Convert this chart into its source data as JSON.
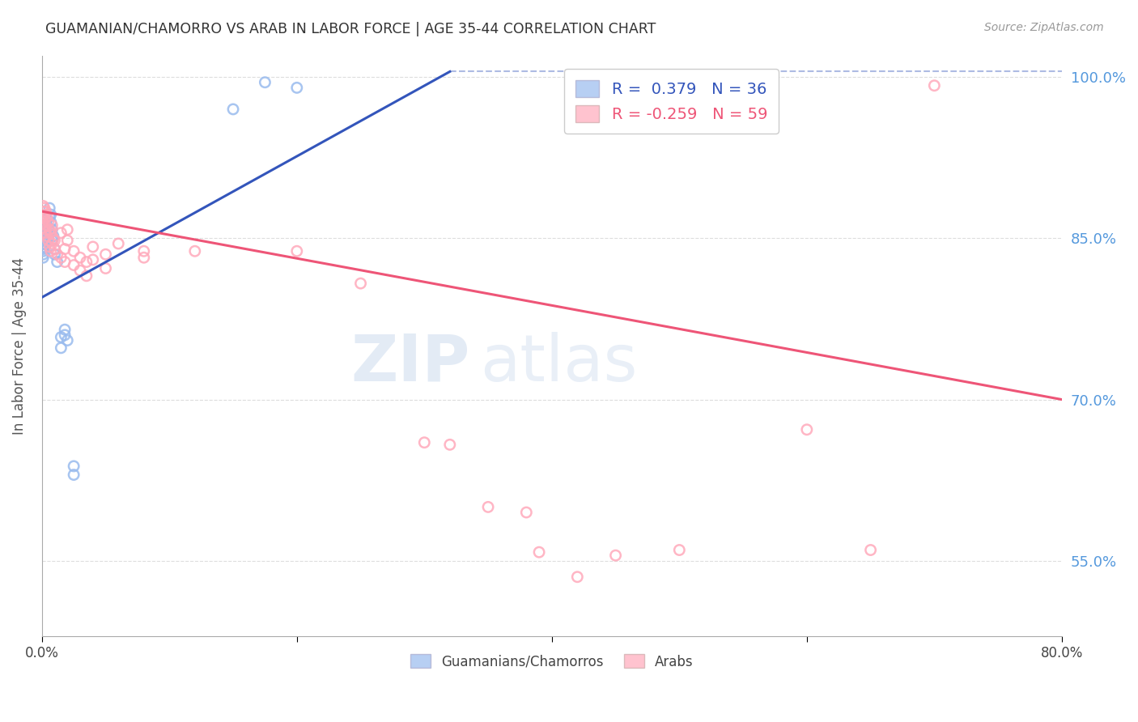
{
  "title": "GUAMANIAN/CHAMORRO VS ARAB IN LABOR FORCE | AGE 35-44 CORRELATION CHART",
  "source": "Source: ZipAtlas.com",
  "ylabel": "In Labor Force | Age 35-44",
  "legend_label1": "Guamanians/Chamorros",
  "legend_label2": "Arabs",
  "R1": 0.379,
  "N1": 36,
  "R2": -0.259,
  "N2": 59,
  "blue_color": "#99BBEE",
  "pink_color": "#FFAABB",
  "blue_line_color": "#3355BB",
  "pink_line_color": "#EE5577",
  "blue_scatter": [
    [
      0.001,
      0.84
    ],
    [
      0.001,
      0.835
    ],
    [
      0.001,
      0.832
    ],
    [
      0.001,
      0.842
    ],
    [
      0.001,
      0.838
    ],
    [
      0.002,
      0.855
    ],
    [
      0.002,
      0.848
    ],
    [
      0.002,
      0.852
    ],
    [
      0.002,
      0.845
    ],
    [
      0.003,
      0.858
    ],
    [
      0.003,
      0.862
    ],
    [
      0.003,
      0.85
    ],
    [
      0.004,
      0.868
    ],
    [
      0.004,
      0.855
    ],
    [
      0.005,
      0.86
    ],
    [
      0.005,
      0.85
    ],
    [
      0.006,
      0.878
    ],
    [
      0.006,
      0.87
    ],
    [
      0.007,
      0.872
    ],
    [
      0.007,
      0.865
    ],
    [
      0.008,
      0.858
    ],
    [
      0.008,
      0.848
    ],
    [
      0.009,
      0.852
    ],
    [
      0.01,
      0.84
    ],
    [
      0.01,
      0.835
    ],
    [
      0.012,
      0.828
    ],
    [
      0.015,
      0.758
    ],
    [
      0.015,
      0.748
    ],
    [
      0.018,
      0.76
    ],
    [
      0.018,
      0.765
    ],
    [
      0.02,
      0.755
    ],
    [
      0.025,
      0.638
    ],
    [
      0.025,
      0.63
    ],
    [
      0.15,
      0.97
    ],
    [
      0.175,
      0.995
    ],
    [
      0.2,
      0.99
    ]
  ],
  "pink_scatter": [
    [
      0.001,
      0.87
    ],
    [
      0.001,
      0.865
    ],
    [
      0.001,
      0.875
    ],
    [
      0.001,
      0.88
    ],
    [
      0.002,
      0.878
    ],
    [
      0.002,
      0.86
    ],
    [
      0.002,
      0.868
    ],
    [
      0.002,
      0.872
    ],
    [
      0.003,
      0.862
    ],
    [
      0.003,
      0.855
    ],
    [
      0.003,
      0.875
    ],
    [
      0.003,
      0.858
    ],
    [
      0.004,
      0.87
    ],
    [
      0.004,
      0.852
    ],
    [
      0.005,
      0.865
    ],
    [
      0.005,
      0.848
    ],
    [
      0.006,
      0.858
    ],
    [
      0.006,
      0.842
    ],
    [
      0.007,
      0.855
    ],
    [
      0.007,
      0.838
    ],
    [
      0.008,
      0.862
    ],
    [
      0.008,
      0.845
    ],
    [
      0.009,
      0.85
    ],
    [
      0.01,
      0.848
    ],
    [
      0.01,
      0.84
    ],
    [
      0.012,
      0.835
    ],
    [
      0.015,
      0.855
    ],
    [
      0.015,
      0.832
    ],
    [
      0.018,
      0.84
    ],
    [
      0.018,
      0.828
    ],
    [
      0.02,
      0.858
    ],
    [
      0.02,
      0.848
    ],
    [
      0.025,
      0.838
    ],
    [
      0.025,
      0.825
    ],
    [
      0.03,
      0.832
    ],
    [
      0.03,
      0.82
    ],
    [
      0.035,
      0.828
    ],
    [
      0.035,
      0.815
    ],
    [
      0.04,
      0.842
    ],
    [
      0.04,
      0.83
    ],
    [
      0.05,
      0.835
    ],
    [
      0.05,
      0.822
    ],
    [
      0.06,
      0.845
    ],
    [
      0.08,
      0.838
    ],
    [
      0.08,
      0.832
    ],
    [
      0.12,
      0.838
    ],
    [
      0.2,
      0.838
    ],
    [
      0.25,
      0.808
    ],
    [
      0.3,
      0.66
    ],
    [
      0.32,
      0.658
    ],
    [
      0.35,
      0.6
    ],
    [
      0.38,
      0.595
    ],
    [
      0.39,
      0.558
    ],
    [
      0.42,
      0.535
    ],
    [
      0.45,
      0.555
    ],
    [
      0.5,
      0.56
    ],
    [
      0.6,
      0.672
    ],
    [
      0.65,
      0.56
    ],
    [
      0.7,
      0.992
    ]
  ],
  "xlim": [
    0.0,
    0.8
  ],
  "ylim": [
    0.48,
    1.02
  ],
  "yticks": [
    0.55,
    0.7,
    0.85,
    1.0
  ],
  "ytick_labels": [
    "55.0%",
    "70.0%",
    "85.0%",
    "100.0%"
  ],
  "xtick_positions": [
    0.0,
    0.2,
    0.4,
    0.6,
    0.8
  ],
  "xtick_labels": [
    "0.0%",
    "",
    "",
    "",
    "80.0%"
  ],
  "bg_color": "#FFFFFF",
  "grid_color": "#DDDDDD",
  "title_color": "#333333",
  "axis_label_color": "#555555",
  "right_axis_color": "#5599DD",
  "watermark_zip": "ZIP",
  "watermark_atlas": "atlas",
  "marker_size": 80
}
